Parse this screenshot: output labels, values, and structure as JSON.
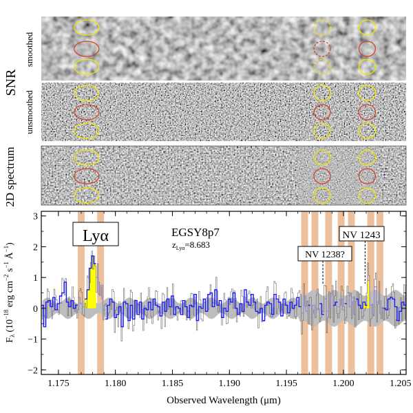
{
  "panels": {
    "snr_label": "SNR",
    "smoothed_label": "smoothed",
    "unsmoothed_label": "unsmoothed",
    "spectrum2d_label": "2D spectrum"
  },
  "colors": {
    "spectrum": "#1a1aff",
    "error_band": "#bdbdbd",
    "unbinned": "#666666",
    "skylines": "#e9b48c",
    "lya_fill": "#ffff00",
    "circle_yellow": "#f2e600",
    "circle_red": "#d4442e"
  },
  "chart_data": {
    "type": "line",
    "title": "EGSY8p7",
    "subtitle_main": "z",
    "subtitle_sub": "Lyα",
    "subtitle_value": "=8.683",
    "xlabel": "Observed Wavelength (μm)",
    "ylabel": "F_λ (10^-18 erg cm^-2 s^-1 Å^-1)",
    "ylabel_parts": {
      "f": "F",
      "fsub": "λ",
      "open": "(10",
      "e1": "−18",
      "erg": " erg cm",
      "e2": "−2",
      "s": " s",
      "e3": "−1",
      "a": " Å",
      "e4": "−1",
      "close": ")"
    },
    "xlim": [
      1.1735,
      1.2055
    ],
    "ylim": [
      -2.15,
      3.15
    ],
    "xticks": [
      "1.175",
      "1.180",
      "1.185",
      "1.190",
      "1.195",
      "1.200",
      "1.205"
    ],
    "yticks": [
      "−2",
      "−1",
      "0",
      "1",
      "2",
      "3"
    ],
    "annotations": {
      "lya": "Lyα",
      "nv1238": "NV 1238?",
      "nv1243": "NV 1243",
      "lya_wavelength": 1.1776,
      "nv1238_wavelength": 1.1982,
      "nv1243_wavelength": 1.2019
    },
    "sky_bands": [
      [
        1.1767,
        1.1773
      ],
      [
        1.1784,
        1.179
      ],
      [
        1.1963,
        1.1969
      ],
      [
        1.1972,
        1.1978
      ],
      [
        1.1984,
        1.199
      ],
      [
        1.1995,
        1.2001
      ],
      [
        1.2004,
        1.201
      ],
      [
        1.2021,
        1.2027
      ],
      [
        1.2029,
        1.2035
      ]
    ],
    "series": [
      {
        "x_start": 1.1735,
        "x_step": 0.0002,
        "flux": [
          0.1,
          -0.6,
          0.2,
          0.25,
          0.05,
          0.35,
          -0.05,
          0.15,
          0.4,
          0.5,
          0.85,
          0.2,
          0.05,
          0.25,
          0.0,
          0.1,
          0.35,
          0.15,
          0.05,
          0.3,
          0.6,
          1.3,
          1.7,
          1.45,
          1.0,
          0.45,
          0.75,
          -0.05,
          -0.35,
          0.1,
          0.3,
          0.2,
          -0.3,
          -0.2,
          0.05,
          -0.6,
          0.2,
          0.15,
          -0.4,
          0.1,
          -0.35,
          0.25,
          -0.2,
          0.2,
          -0.35,
          0.0,
          -0.05,
          0.2,
          -0.05,
          0.3,
          0.1,
          0.05,
          -0.25,
          0.2,
          -0.1,
          0.3,
          0.05,
          0.4,
          -0.2,
          0.05,
          0.0,
          -0.2,
          0.25,
          0.05,
          -0.3,
          0.1,
          0.05,
          0.45,
          -0.4,
          0.05,
          0.0,
          0.3,
          -0.1,
          0.45,
          0.5,
          0.05,
          0.6,
          0.1,
          0.25,
          -0.3,
          0.0,
          -0.1,
          0.3,
          0.2,
          0.5,
          0.0,
          -0.2,
          0.15,
          -0.1,
          0.6,
          0.2,
          0.1,
          0.45,
          0.2,
          -0.1,
          -0.15,
          0.0,
          -0.4,
          0.1,
          0.2,
          0.15,
          -0.2,
          0.45,
          0.3,
          0.2,
          -0.25,
          0.3,
          0.1,
          -0.15,
          0.2,
          0.0,
          0.1,
          0.35,
          0.05,
          -0.15,
          0.4,
          -0.1,
          0.1,
          -0.3,
          0.1,
          0.0,
          -0.05,
          0.15,
          -0.2,
          0.3,
          -0.1,
          0.05,
          0.45,
          0.1,
          0.2,
          0.05,
          0.3,
          -0.05,
          0.15,
          0.5,
          0.05,
          0.35,
          -0.2,
          0.3,
          0.1,
          0.0,
          0.2,
          0.1,
          0.9,
          0.1,
          -0.2,
          0.7,
          0.2,
          0.25,
          -0.15,
          0.0,
          -0.05,
          0.3,
          0.35,
          0.3,
          0.05,
          -0.4,
          -0.1,
          0.2,
          0.1,
          0.5,
          0.65,
          0.05,
          0.15,
          0.25,
          0.0,
          0.2,
          0.3,
          0.3,
          0.1
        ]
      }
    ]
  }
}
